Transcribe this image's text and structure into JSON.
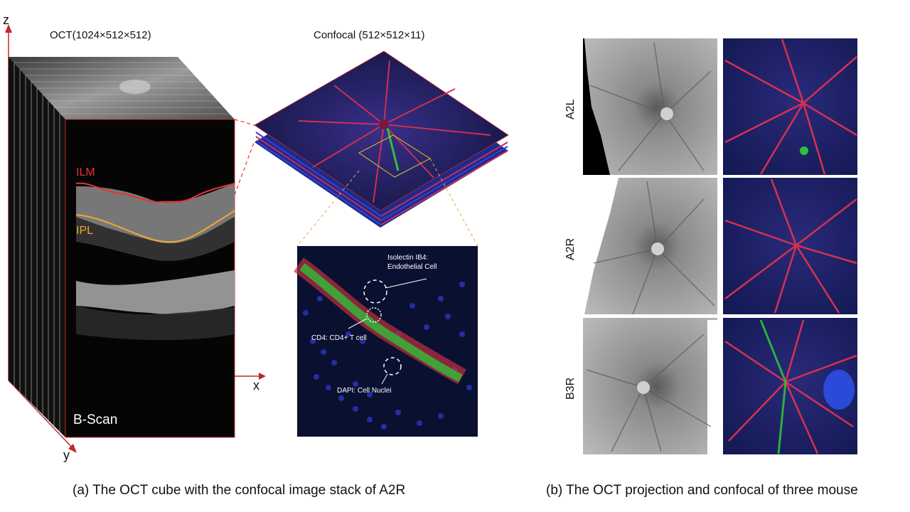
{
  "colors": {
    "ilm": "#e8332e",
    "ipl": "#f0a830",
    "axis": "#c0282a",
    "zoom_guide": "#e8a93a",
    "dapi": "#1a2c9c",
    "vessel": "#d83050",
    "cd4": "#2fbf3a"
  },
  "panel_a": {
    "oct_label": "OCT(1024×512×512)",
    "confocal_label": "Confocal (512×512×11)",
    "axis_z": "z",
    "axis_x": "x",
    "axis_y": "y",
    "ilm_label": "ILM",
    "ipl_label": "IPL",
    "bscan_label": "B-Scan",
    "annotations": {
      "isolectin": [
        "Isolectin IB4:",
        "Endothelial Cell"
      ],
      "cd4": "CD4: CD4+ T cell",
      "dapi": "DAPI: Cell Nuclei"
    },
    "caption": "(a) The OCT cube with the confocal image stack of A2R"
  },
  "panel_b": {
    "rows": [
      "A2L",
      "A2R",
      "B3R"
    ],
    "caption": "(b) The OCT projection and confocal of three mouse"
  }
}
